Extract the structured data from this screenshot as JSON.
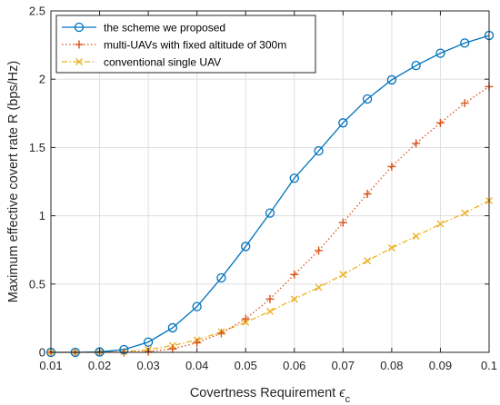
{
  "chart_data": {
    "type": "line",
    "xlabel_main": "Covertness Requirement ",
    "xlabel_symbol": "ϵ",
    "xlabel_sub": "c",
    "ylabel": "Maximum effective covert rate R (bps/Hz)",
    "xlim": [
      0.01,
      0.1
    ],
    "ylim": [
      0,
      2.5
    ],
    "x_ticks": [
      0.01,
      0.02,
      0.03,
      0.04,
      0.05,
      0.06,
      0.07,
      0.08,
      0.09,
      0.1
    ],
    "x_tick_labels": [
      "0.01",
      "0.02",
      "0.03",
      "0.04",
      "0.05",
      "0.06",
      "0.07",
      "0.08",
      "0.09",
      "0.1"
    ],
    "y_ticks": [
      0,
      0.5,
      1,
      1.5,
      2,
      2.5
    ],
    "y_tick_labels": [
      "0",
      "0.5",
      "1",
      "1.5",
      "2",
      "2.5"
    ],
    "grid": true,
    "legend_position": "top-left",
    "x": [
      0.01,
      0.015,
      0.02,
      0.025,
      0.03,
      0.035,
      0.04,
      0.045,
      0.05,
      0.055,
      0.06,
      0.065,
      0.07,
      0.075,
      0.08,
      0.085,
      0.09,
      0.095,
      0.1
    ],
    "series": [
      {
        "name": "the scheme we proposed",
        "color": "#0072BD",
        "style": "solid",
        "marker": "circle",
        "values": [
          0.0,
          0.0,
          0.003,
          0.02,
          0.075,
          0.18,
          0.335,
          0.545,
          0.775,
          1.02,
          1.275,
          1.475,
          1.68,
          1.855,
          1.995,
          2.1,
          2.19,
          2.265,
          2.32
        ]
      },
      {
        "name": "multi-UAVs with fixed altitude of 300m",
        "color": "#D95319",
        "style": "dotted",
        "marker": "plus",
        "values": [
          0.0,
          0.0,
          0.0,
          0.0,
          0.005,
          0.025,
          0.07,
          0.14,
          0.245,
          0.39,
          0.57,
          0.745,
          0.95,
          1.16,
          1.36,
          1.53,
          1.68,
          1.825,
          1.945
        ]
      },
      {
        "name": "conventional single UAV",
        "color": "#EDB120",
        "style": "dashdot",
        "marker": "x",
        "values": [
          0.0,
          0.0,
          0.0,
          0.005,
          0.02,
          0.05,
          0.09,
          0.15,
          0.22,
          0.3,
          0.39,
          0.475,
          0.57,
          0.67,
          0.765,
          0.85,
          0.94,
          1.02,
          1.11
        ]
      }
    ]
  }
}
